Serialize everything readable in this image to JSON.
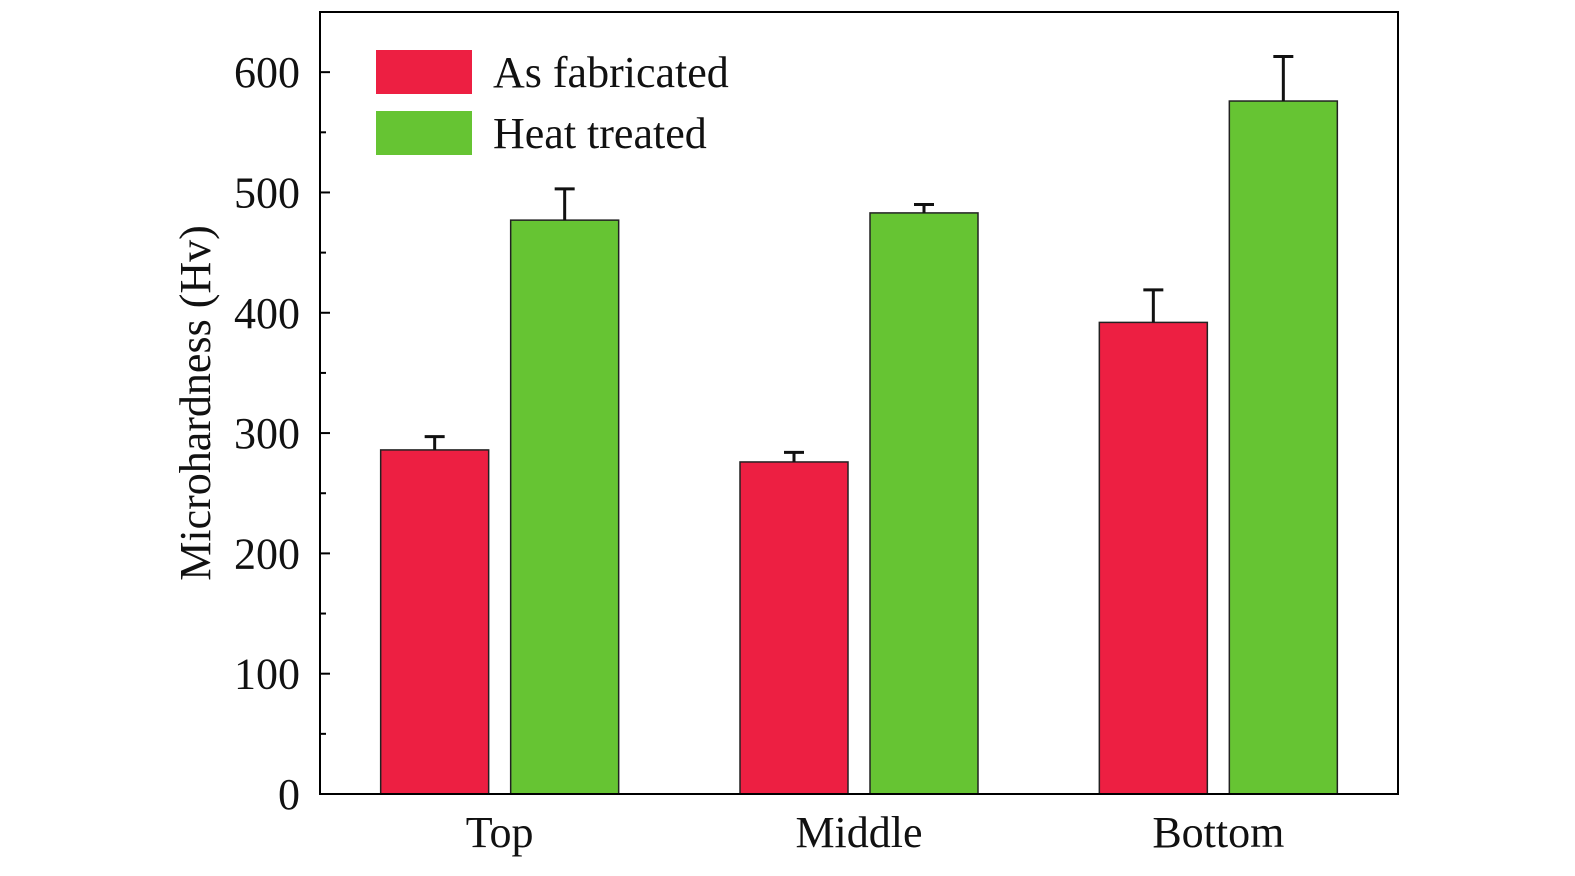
{
  "chart_data": {
    "type": "bar",
    "title": "",
    "xlabel": "",
    "ylabel": "Microhardness (Hv)",
    "ylim": [
      0,
      650
    ],
    "yticks": [
      0,
      100,
      200,
      300,
      400,
      500,
      600
    ],
    "categories": [
      "Top",
      "Middle",
      "Bottom"
    ],
    "series": [
      {
        "name": "As fabricated",
        "color": "#ED1F42",
        "values": [
          286,
          276,
          392
        ],
        "errors": [
          11,
          8,
          27
        ]
      },
      {
        "name": "Heat treated",
        "color": "#66C433",
        "values": [
          477,
          483,
          576
        ],
        "errors": [
          26,
          7,
          37
        ]
      }
    ],
    "legend": {
      "position": "top-left"
    },
    "grid": false
  }
}
